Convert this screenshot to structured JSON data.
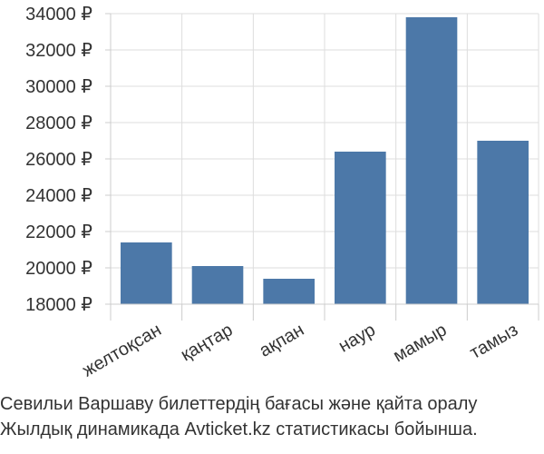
{
  "colors": {
    "bar": "#4c78a8",
    "grid": "#dddddd",
    "axis": "#cccccc",
    "text": "#333333"
  },
  "caption": {
    "line1": "Севильи Варшаву билеттердің бағасы және қайта оралу",
    "line2": "Жылдық динамикада Avticket.kz статистикасы бойынша."
  },
  "chart_data": {
    "type": "bar",
    "categories": [
      "желтоқсан",
      "қаңтар",
      "ақпан",
      "наур",
      "мамыр",
      "тамыз"
    ],
    "values": [
      21400,
      20100,
      19400,
      26400,
      33800,
      27000
    ],
    "ylim": [
      18000,
      34000
    ],
    "yticks": [
      18000,
      20000,
      22000,
      24000,
      26000,
      28000,
      30000,
      32000,
      34000
    ],
    "ytick_labels": [
      "18000 ₽",
      "20000 ₽",
      "22000 ₽",
      "24000 ₽",
      "26000 ₽",
      "28000 ₽",
      "30000 ₽",
      "32000 ₽",
      "34000 ₽"
    ],
    "grid": true,
    "legend": "none"
  }
}
